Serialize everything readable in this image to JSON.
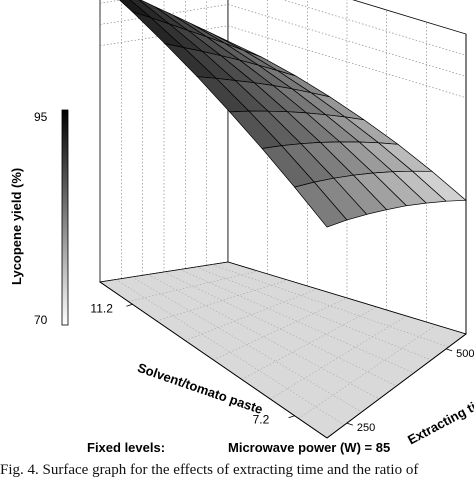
{
  "chart_data": {
    "type": "surface",
    "title": "",
    "xlabel": "Solvent/tomato paste",
    "ylabel": "Extracting time (S)",
    "zlabel": "Lycopene yield (%)",
    "x_ticks": [
      "11.2",
      "7.2"
    ],
    "y_ticks": [
      "250",
      "500"
    ],
    "z_ticks": [
      "95",
      "70"
    ],
    "zlim": [
      70,
      95
    ],
    "grid": true,
    "colorscale": "gray",
    "fixed_levels_label": "Fixed levels:",
    "fixed_levels_value": "Microwave power (W) = 85",
    "x_values": [
      12.0,
      11.2,
      10.4,
      9.6,
      8.8,
      8.0,
      7.2,
      6.4
    ],
    "y_values": [
      200,
      250,
      300,
      350,
      400,
      450,
      500,
      550
    ],
    "z_values": [
      [
        95.0,
        91.9,
        88.6,
        85.2,
        81.9,
        78.5,
        75.1,
        71.7
      ],
      [
        92.8,
        89.7,
        86.5,
        83.3,
        80.1,
        76.8,
        73.4,
        70.0
      ],
      [
        90.0,
        87.0,
        84.0,
        80.9,
        77.7,
        74.4,
        71.0,
        67.5
      ],
      [
        86.8,
        84.0,
        81.0,
        78.0,
        74.8,
        71.5,
        68.0,
        64.4
      ],
      [
        83.0,
        80.4,
        77.5,
        74.5,
        71.3,
        67.9,
        64.4,
        60.7
      ],
      [
        78.8,
        76.3,
        73.5,
        70.5,
        67.3,
        63.9,
        60.3,
        56.5
      ],
      [
        74.0,
        71.6,
        68.9,
        65.9,
        62.7,
        59.2,
        55.5,
        51.6
      ],
      [
        68.8,
        66.5,
        63.8,
        60.8,
        57.6,
        54.0,
        50.2,
        46.1
      ]
    ]
  },
  "caption": "Fig. 4. Surface graph for the effects of extracting time and the ratio of"
}
